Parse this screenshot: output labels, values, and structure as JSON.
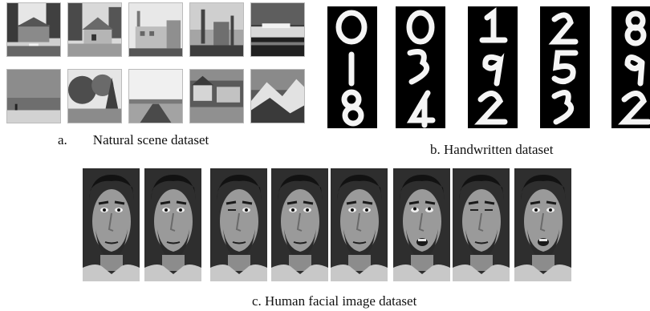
{
  "panel_a": {
    "label_letter": "a.",
    "label_text": "Natural scene dataset",
    "images": [
      {
        "name": "house-photo"
      },
      {
        "name": "cottage-photo"
      },
      {
        "name": "factory-photo"
      },
      {
        "name": "industrial-plant-photo"
      },
      {
        "name": "ship-photo"
      },
      {
        "name": "beach-photo"
      },
      {
        "name": "forest-photo"
      },
      {
        "name": "road-photo"
      },
      {
        "name": "town-photo"
      },
      {
        "name": "mountain-photo"
      }
    ]
  },
  "panel_b": {
    "label": "b. Handwritten dataset",
    "digit_columns": [
      [
        "0",
        "1",
        "8"
      ],
      [
        "0",
        "3",
        "4"
      ],
      [
        "1",
        "9",
        "2"
      ],
      [
        "2",
        "5",
        "3"
      ],
      [
        "8",
        "9",
        "2"
      ]
    ]
  },
  "panel_c": {
    "label": "c. Human facial image dataset",
    "faces": [
      {
        "expression": "neutral"
      },
      {
        "expression": "neutral"
      },
      {
        "expression": "wink"
      },
      {
        "expression": "neutral"
      },
      {
        "expression": "neutral"
      },
      {
        "expression": "looking-up"
      },
      {
        "expression": "eyes-closed"
      },
      {
        "expression": "mouth-open"
      }
    ]
  }
}
